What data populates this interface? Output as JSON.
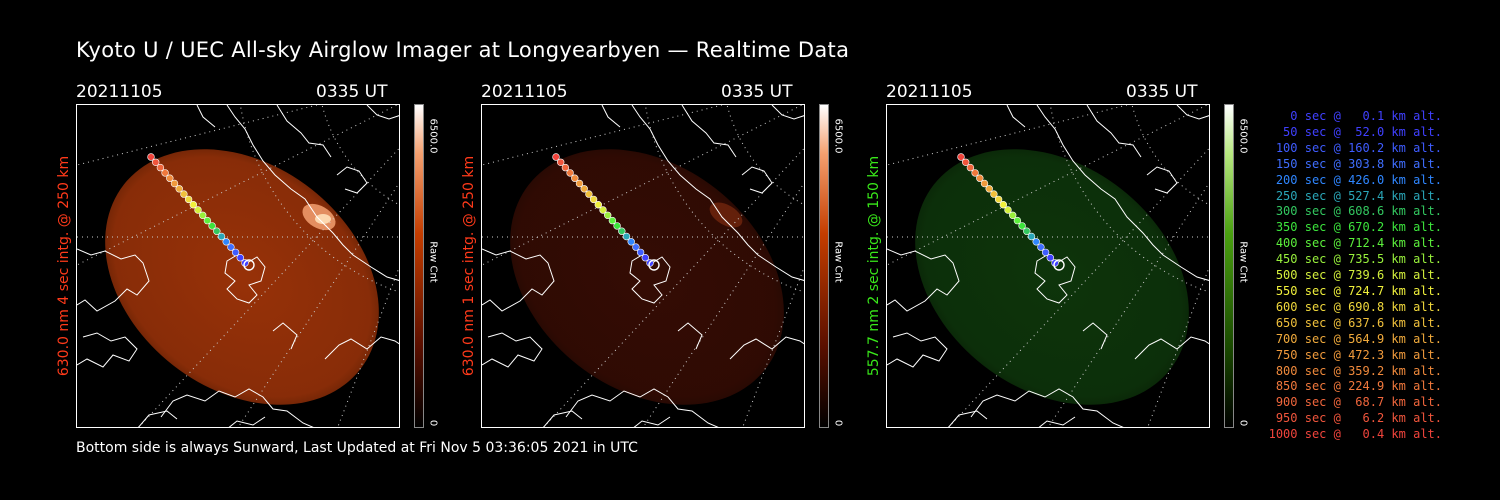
{
  "title": "Kyoto U / UEC All-sky Airglow Imager at Longyearbyen — Realtime Data",
  "panels": [
    {
      "date": "20211105",
      "time": "0335 UT",
      "ylabel": "630.0 nm 4 sec intg. @ 250 km",
      "ylabel_color": "#ff3a1a",
      "cbar_max": "6500.0",
      "cbar_unit": "Raw Cnt",
      "cbar_min": "0",
      "glow_color": "#b23a0a",
      "glow_opacity": 0.85
    },
    {
      "date": "20211105",
      "time": "0335 UT",
      "ylabel": "630.0 nm 1 sec intg. @ 250 km",
      "ylabel_color": "#ff3a1a",
      "cbar_max": "6500.0",
      "cbar_unit": "Raw Cnt",
      "cbar_min": "0",
      "glow_color": "#3a0d04",
      "glow_opacity": 0.9
    },
    {
      "date": "20211105",
      "time": "0335 UT",
      "ylabel": "557.7 nm 2 sec intg. @ 150 km",
      "ylabel_color": "#39e81a",
      "cbar_max": "6500.0",
      "cbar_unit": "Raw Cnt",
      "cbar_min": "0",
      "glow_color": "#0f3a0c",
      "glow_opacity": 0.9
    }
  ],
  "legend": [
    {
      "text": "0 sec @   0.1 km alt.",
      "color": "#4040ff"
    },
    {
      "text": "50 sec @  52.0 km alt.",
      "color": "#4040ff"
    },
    {
      "text": "100 sec @ 160.2 km alt.",
      "color": "#3f5cff"
    },
    {
      "text": "150 sec @ 303.8 km alt.",
      "color": "#3f6eff"
    },
    {
      "text": "200 sec @ 426.0 km alt.",
      "color": "#2f86ff"
    },
    {
      "text": "250 sec @ 527.4 km alt.",
      "color": "#2aa6b8"
    },
    {
      "text": "300 sec @ 608.6 km alt.",
      "color": "#33c860"
    },
    {
      "text": "350 sec @ 670.2 km alt.",
      "color": "#3ce43c"
    },
    {
      "text": "400 sec @ 712.4 km alt.",
      "color": "#5cf03c"
    },
    {
      "text": "450 sec @ 735.5 km alt.",
      "color": "#98f03c"
    },
    {
      "text": "500 sec @ 739.6 km alt.",
      "color": "#d4f03c"
    },
    {
      "text": "550 sec @ 724.7 km alt.",
      "color": "#f0f03c"
    },
    {
      "text": "600 sec @ 690.8 km alt.",
      "color": "#f0d83c"
    },
    {
      "text": "650 sec @ 637.6 km alt.",
      "color": "#f0c03c"
    },
    {
      "text": "700 sec @ 564.9 km alt.",
      "color": "#f0aa3c"
    },
    {
      "text": "750 sec @ 472.3 km alt.",
      "color": "#f09a3c"
    },
    {
      "text": "800 sec @ 359.2 km alt.",
      "color": "#f08a3c"
    },
    {
      "text": "850 sec @ 224.9 km alt.",
      "color": "#f0783c"
    },
    {
      "text": "900 sec @  68.7 km alt.",
      "color": "#f0663c"
    },
    {
      "text": "950 sec @   6.2 km alt.",
      "color": "#f0553c"
    },
    {
      "text": "1000 sec @   0.4 km alt.",
      "color": "#f0443c"
    }
  ],
  "footer": "Bottom side is always Sunward, Last Updated at Fri Nov  5 03:36:05 2021 in UTC"
}
